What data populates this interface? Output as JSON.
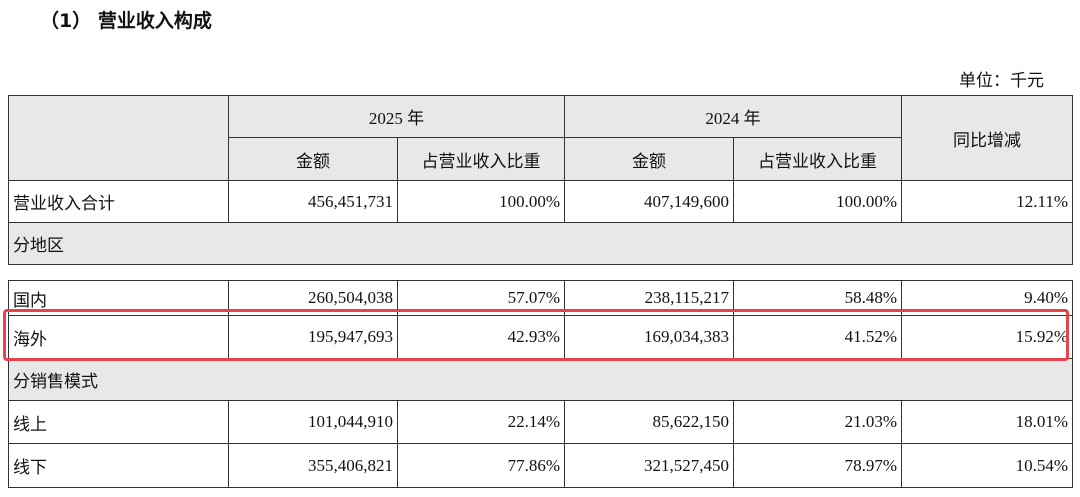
{
  "heading": "（1） 营业收入构成",
  "unit": "单位：千元",
  "table": {
    "header": {
      "years": [
        "2025 年",
        "2024 年"
      ],
      "change": "同比增减",
      "subheaders": [
        "金额",
        "占营业收入比重",
        "金额",
        "占营业收入比重"
      ]
    },
    "rows": [
      [
        "营业收入合计",
        "456,451,731",
        "100.00%",
        "407,149,600",
        "100.00%",
        "12.11%"
      ],
      [
        "分地区"
      ],
      [
        "国内",
        "260,504,038",
        "57.07%",
        "238,115,217",
        "58.48%",
        "9.40%"
      ],
      [
        "海外",
        "195,947,693",
        "42.93%",
        "169,034,383",
        "41.52%",
        "15.92%"
      ],
      [
        "分销售模式"
      ],
      [
        "线上",
        "101,044,910",
        "22.14%",
        "85,622,150",
        "21.03%",
        "18.01%"
      ],
      [
        "线下",
        "355,406,821",
        "77.86%",
        "321,527,450",
        "78.97%",
        "10.54%"
      ]
    ]
  }
}
